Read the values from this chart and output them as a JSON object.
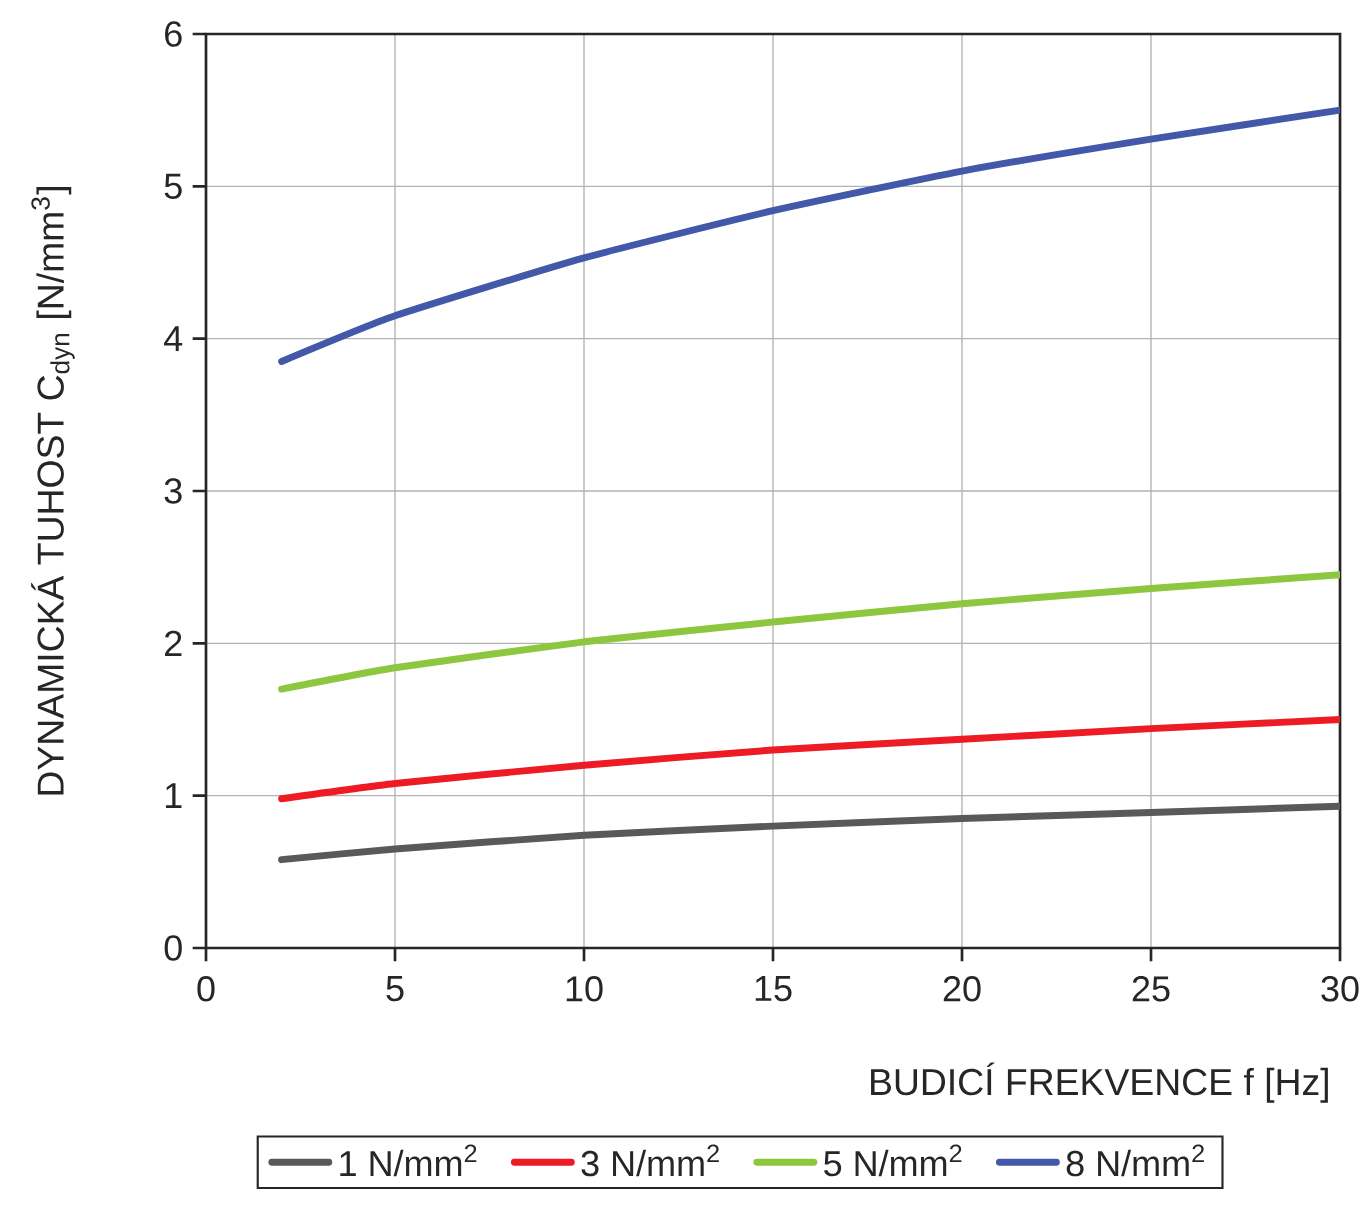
{
  "chart_data": {
    "type": "line",
    "xlabel": "BUDICÍ FREKVENCE f [Hz]",
    "ylabel": "DYNAMICKÁ TUHOST C$_{dyn}$  [N/mm$^{3}$]",
    "x": [
      2,
      5,
      10,
      15,
      20,
      25,
      30
    ],
    "series": [
      {
        "name": "1 N/mm$^{2}$",
        "color": "#58595b",
        "values": [
          0.58,
          0.65,
          0.74,
          0.8,
          0.85,
          0.89,
          0.93
        ]
      },
      {
        "name": "3 N/mm$^{2}$",
        "color": "#ed1c24",
        "values": [
          0.98,
          1.08,
          1.2,
          1.3,
          1.37,
          1.44,
          1.5
        ]
      },
      {
        "name": "5 N/mm$^{2}$",
        "color": "#8dc63f",
        "values": [
          1.7,
          1.84,
          2.01,
          2.14,
          2.26,
          2.36,
          2.45
        ]
      },
      {
        "name": "8 N/mm$^{2}$",
        "color": "#4358a8",
        "values": [
          3.85,
          4.15,
          4.53,
          4.84,
          5.1,
          5.31,
          5.5
        ]
      }
    ],
    "xlim": [
      0,
      30
    ],
    "ylim": [
      0,
      6
    ],
    "xticks": [
      0,
      5,
      10,
      15,
      20,
      25,
      30
    ],
    "yticks": [
      0,
      1,
      2,
      3,
      4,
      5,
      6
    ],
    "grid": true,
    "legend": "bottom",
    "marker": "none",
    "line_style": "solid"
  }
}
